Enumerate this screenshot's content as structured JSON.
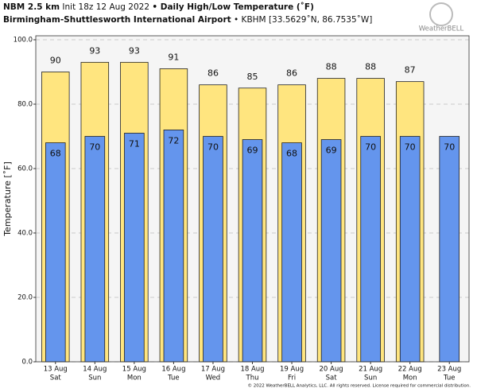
{
  "chart_data": {
    "type": "bar",
    "title_model": "NBM 2.5 km",
    "title_init": "Init 18z 12 Aug 2022",
    "title_main": "• Daily High/Low Temperature (˚F)",
    "subtitle_station": "Birmingham-Shuttlesworth International Airport",
    "subtitle_coords": "• KBHM [33.5629˚N, 86.7535˚W]",
    "logo": "WeatherBELL",
    "footer": "© 2022 WeatherBELL Analytics, LLC. All rights reserved. License required for commercial distribution.",
    "y_label": "Temperature [˚F]",
    "categories": [
      "13 Aug",
      "14 Aug",
      "15 Aug",
      "16 Aug",
      "17 Aug",
      "18 Aug",
      "19 Aug",
      "20 Aug",
      "21 Aug",
      "22 Aug",
      "23 Aug"
    ],
    "weekdays": [
      "Sat",
      "Sun",
      "Mon",
      "Tue",
      "Wed",
      "Thu",
      "Fri",
      "Sat",
      "Sun",
      "Mon",
      "Tue"
    ],
    "series": [
      {
        "name": "High",
        "color": "#ffe57f",
        "values": [
          90,
          93,
          93,
          91,
          86,
          85,
          86,
          88,
          88,
          87,
          null
        ]
      },
      {
        "name": "Low",
        "color": "#6495ed",
        "values": [
          68,
          70,
          71,
          72,
          70,
          69,
          68,
          69,
          70,
          70,
          70
        ]
      }
    ],
    "ylim": [
      0,
      100
    ],
    "yticks": [
      {
        "value": 0,
        "label": "0.0"
      },
      {
        "value": 20,
        "label": "20.0"
      },
      {
        "value": 40,
        "label": "40.0"
      },
      {
        "value": 60,
        "label": "60.0"
      },
      {
        "value": 80,
        "label": "80.0"
      },
      {
        "value": 100,
        "label": "100.0"
      }
    ],
    "grid": true
  }
}
